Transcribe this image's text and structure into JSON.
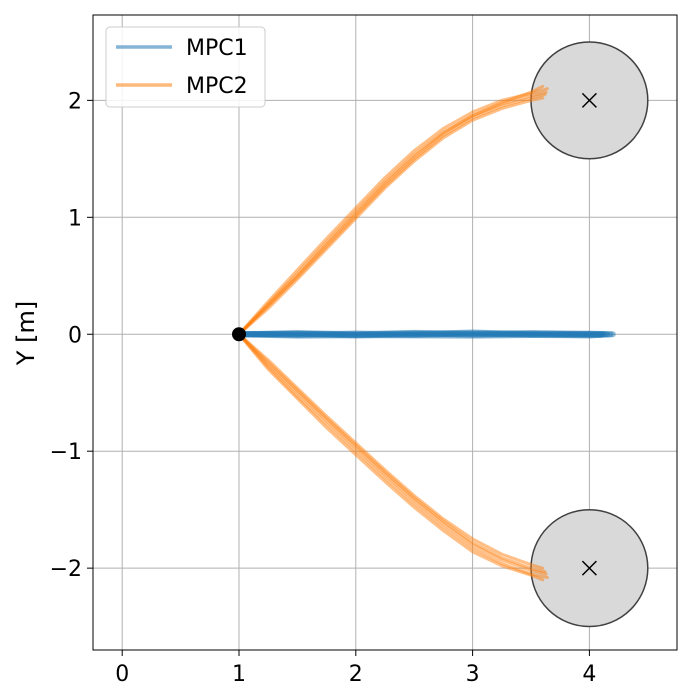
{
  "chart_data": {
    "type": "line",
    "xlabel": "",
    "ylabel": "Y [m]",
    "xlim": [
      -0.25,
      4.75
    ],
    "ylim": [
      -2.7,
      2.73
    ],
    "xticks": [
      0,
      1,
      2,
      3,
      4
    ],
    "yticks": [
      -2,
      -1,
      0,
      1,
      2
    ],
    "xtick_labels": [
      "0",
      "1",
      "2",
      "3",
      "4"
    ],
    "ytick_labels": [
      "−2",
      "−1",
      "0",
      "1",
      "2"
    ],
    "grid": true,
    "legend_position": "top-left",
    "start_point": {
      "x": 1,
      "y": 0
    },
    "obstacles": [
      {
        "cx": 4,
        "cy": 2,
        "r": 0.5
      },
      {
        "cx": 4,
        "cy": -2,
        "r": 0.5
      }
    ],
    "series": [
      {
        "name": "MPC1",
        "color": "#1f77b4",
        "paths": [
          {
            "x": [
              1.0,
              1.5,
              2.0,
              2.5,
              3.0,
              3.5,
              4.0,
              4.18
            ],
            "y": [
              0.0,
              0.005,
              -0.005,
              0.006,
              -0.004,
              0.005,
              0.0,
              0.0
            ]
          },
          {
            "x": [
              1.0,
              1.5,
              2.0,
              2.5,
              3.0,
              3.5,
              4.0,
              4.15
            ],
            "y": [
              0.0,
              -0.006,
              0.006,
              -0.005,
              0.007,
              -0.004,
              0.003,
              0.0
            ]
          },
          {
            "x": [
              1.0,
              1.5,
              2.0,
              2.5,
              3.0,
              3.5,
              4.0,
              4.12
            ],
            "y": [
              0.0,
              0.01,
              0.0,
              0.012,
              0.004,
              0.01,
              0.004,
              0.002
            ]
          },
          {
            "x": [
              1.0,
              1.5,
              2.0,
              2.5,
              3.0,
              3.5,
              4.0,
              4.1
            ],
            "y": [
              0.0,
              -0.012,
              -0.008,
              -0.01,
              -0.012,
              -0.006,
              -0.008,
              -0.005
            ]
          },
          {
            "x": [
              1.0,
              1.5,
              2.0,
              2.5,
              3.0,
              3.5,
              4.0,
              4.2
            ],
            "y": [
              0.0,
              0.003,
              -0.01,
              0.0,
              0.015,
              0.0,
              -0.01,
              0.0
            ]
          }
        ]
      },
      {
        "name": "MPC2",
        "color": "#ff7f0e",
        "paths": [
          {
            "x": [
              1.0,
              1.25,
              1.5,
              1.75,
              2.0,
              2.25,
              2.5,
              2.75,
              3.0,
              3.25,
              3.5,
              3.63
            ],
            "y": [
              0.0,
              0.26,
              0.52,
              0.79,
              1.05,
              1.31,
              1.54,
              1.73,
              1.87,
              1.97,
              2.04,
              2.07
            ]
          },
          {
            "x": [
              1.0,
              1.25,
              1.5,
              1.75,
              2.0,
              2.25,
              2.5,
              2.75,
              3.0,
              3.25,
              3.5,
              3.62
            ],
            "y": [
              0.0,
              0.24,
              0.49,
              0.75,
              1.01,
              1.27,
              1.5,
              1.7,
              1.85,
              1.95,
              2.02,
              2.05
            ]
          },
          {
            "x": [
              1.0,
              1.25,
              1.5,
              1.75,
              2.0,
              2.25,
              2.5,
              2.75,
              3.0,
              3.25,
              3.5,
              3.64
            ],
            "y": [
              0.0,
              0.28,
              0.55,
              0.82,
              1.08,
              1.34,
              1.57,
              1.76,
              1.9,
              2.0,
              2.06,
              2.1
            ]
          },
          {
            "x": [
              1.0,
              1.25,
              1.5,
              1.75,
              2.0,
              2.25,
              2.5,
              2.75,
              3.0,
              3.25,
              3.5,
              3.6
            ],
            "y": [
              0.0,
              0.22,
              0.47,
              0.73,
              0.99,
              1.25,
              1.48,
              1.68,
              1.83,
              1.93,
              2.0,
              2.02
            ]
          },
          {
            "x": [
              1.0,
              1.25,
              1.5,
              1.75,
              2.0,
              2.25,
              2.5,
              2.75,
              3.0,
              3.25,
              3.5,
              3.6
            ],
            "y": [
              0.0,
              0.25,
              0.5,
              0.77,
              1.03,
              1.29,
              1.52,
              1.72,
              1.87,
              1.98,
              2.07,
              2.12
            ]
          },
          {
            "x": [
              1.0,
              1.25,
              1.5,
              1.75,
              2.0,
              2.25,
              2.5,
              2.75,
              3.0,
              3.25,
              3.5,
              3.63
            ],
            "y": [
              0.0,
              -0.26,
              -0.5,
              -0.74,
              -0.97,
              -1.2,
              -1.42,
              -1.62,
              -1.8,
              -1.93,
              -2.02,
              -2.05
            ]
          },
          {
            "x": [
              1.0,
              1.25,
              1.5,
              1.75,
              2.0,
              2.25,
              2.5,
              2.75,
              3.0,
              3.25,
              3.5,
              3.62
            ],
            "y": [
              0.0,
              -0.24,
              -0.48,
              -0.72,
              -0.95,
              -1.18,
              -1.4,
              -1.6,
              -1.78,
              -1.91,
              -2.0,
              -2.03
            ]
          },
          {
            "x": [
              1.0,
              1.25,
              1.5,
              1.75,
              2.0,
              2.25,
              2.5,
              2.75,
              3.0,
              3.25,
              3.5,
              3.64
            ],
            "y": [
              0.0,
              -0.28,
              -0.53,
              -0.77,
              -1.0,
              -1.23,
              -1.45,
              -1.65,
              -1.83,
              -1.96,
              -2.05,
              -2.08
            ]
          },
          {
            "x": [
              1.0,
              1.25,
              1.5,
              1.75,
              2.0,
              2.25,
              2.5,
              2.75,
              3.0,
              3.25,
              3.5,
              3.6
            ],
            "y": [
              0.0,
              -0.22,
              -0.46,
              -0.7,
              -0.93,
              -1.16,
              -1.38,
              -1.58,
              -1.75,
              -1.88,
              -1.97,
              -2.0
            ]
          },
          {
            "x": [
              1.0,
              1.25,
              1.5,
              1.75,
              2.0,
              2.25,
              2.5,
              2.75,
              3.0,
              3.25,
              3.5,
              3.6
            ],
            "y": [
              0.0,
              -0.3,
              -0.55,
              -0.8,
              -1.03,
              -1.26,
              -1.48,
              -1.68,
              -1.86,
              -1.98,
              -2.06,
              -2.1
            ]
          }
        ]
      }
    ]
  }
}
